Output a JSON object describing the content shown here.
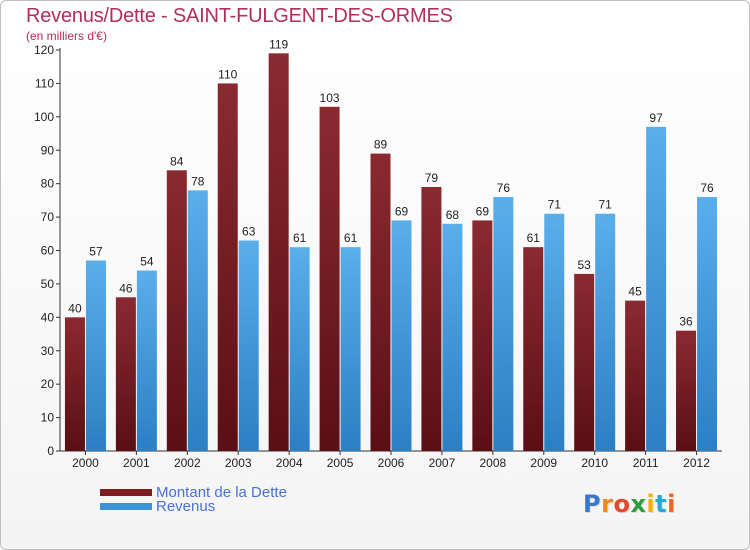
{
  "title": "Revenus/Dette - SAINT-FULGENT-DES-ORMES",
  "subtitle": "(en milliers d'€)",
  "logo": {
    "letters": [
      "P",
      "r",
      "o",
      "x",
      "i",
      "t",
      "i"
    ],
    "colors": [
      "#3a77c8",
      "#e58a1f",
      "#e24a2f",
      "#2e9c3f",
      "#f0b400",
      "#27a9d8",
      "#e9671f"
    ]
  },
  "colors": {
    "dette": "#7a1c22",
    "revenus": "#3d95d9",
    "axis": "#333333",
    "grid": "#d8d8d8"
  },
  "chart_data": {
    "type": "bar",
    "title": "Revenus/Dette - SAINT-FULGENT-DES-ORMES",
    "ylabel": "(en milliers d'€)",
    "xlabel": "",
    "categories": [
      "2000",
      "2001",
      "2002",
      "2003",
      "2004",
      "2005",
      "2006",
      "2007",
      "2008",
      "2009",
      "2010",
      "2011",
      "2012"
    ],
    "series": [
      {
        "name": "Montant de la Dette",
        "values": [
          40,
          46,
          84,
          110,
          119,
          103,
          89,
          79,
          69,
          61,
          53,
          45,
          36
        ]
      },
      {
        "name": "Revenus",
        "values": [
          57,
          54,
          78,
          63,
          61,
          61,
          69,
          68,
          76,
          71,
          71,
          97,
          76
        ]
      }
    ],
    "ylim": [
      0,
      120
    ],
    "yticks": [
      0,
      10,
      20,
      30,
      40,
      50,
      60,
      70,
      80,
      90,
      100,
      110,
      120
    ],
    "legend_position": "bottom-left",
    "grid": false
  }
}
